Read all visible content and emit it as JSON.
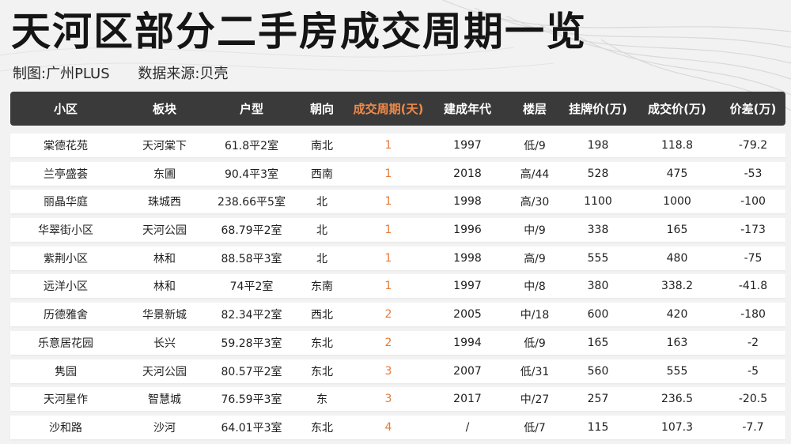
{
  "title": "天河区部分二手房成交周期一览",
  "credits": {
    "made_by": "制图:广州PLUS",
    "source": "数据来源:贝壳"
  },
  "colors": {
    "header_bg": "#3a3a3a",
    "highlight": "#f08a4b",
    "cycle_text": "#e47a3a",
    "row_bg": "#ffffff"
  },
  "table": {
    "headers": [
      "小区",
      "板块",
      "户型",
      "朝向",
      "成交周期(天)",
      "建成年代",
      "楼层",
      "挂牌价(万)",
      "成交价(万)",
      "价差(万)"
    ],
    "rows": [
      [
        "棠德花苑",
        "天河棠下",
        "61.8平2室",
        "南北",
        "1",
        "1997",
        "低/9",
        "198",
        "118.8",
        "-79.2"
      ],
      [
        "兰亭盛荟",
        "东圃",
        "90.4平3室",
        "西南",
        "1",
        "2018",
        "高/44",
        "528",
        "475",
        "-53"
      ],
      [
        "丽晶华庭",
        "珠城西",
        "238.66平5室",
        "北",
        "1",
        "1998",
        "高/30",
        "1100",
        "1000",
        "-100"
      ],
      [
        "华翠街小区",
        "天河公园",
        "68.79平2室",
        "北",
        "1",
        "1996",
        "中/9",
        "338",
        "165",
        "-173"
      ],
      [
        "紫荆小区",
        "林和",
        "88.58平3室",
        "北",
        "1",
        "1998",
        "高/9",
        "555",
        "480",
        "-75"
      ],
      [
        "远洋小区",
        "林和",
        "74平2室",
        "东南",
        "1",
        "1997",
        "中/8",
        "380",
        "338.2",
        "-41.8"
      ],
      [
        "历德雅舍",
        "华景新城",
        "82.34平2室",
        "西北",
        "2",
        "2005",
        "中/18",
        "600",
        "420",
        "-180"
      ],
      [
        "乐意居花园",
        "长兴",
        "59.28平3室",
        "东北",
        "2",
        "1994",
        "低/9",
        "165",
        "163",
        "-2"
      ],
      [
        "隽园",
        "天河公园",
        "80.57平2室",
        "东北",
        "3",
        "2007",
        "低/31",
        "560",
        "555",
        "-5"
      ],
      [
        "天河星作",
        "智慧城",
        "76.59平3室",
        "东",
        "3",
        "2017",
        "中/27",
        "257",
        "236.5",
        "-20.5"
      ],
      [
        "沙和路",
        "沙河",
        "64.01平3室",
        "东北",
        "4",
        "/",
        "低/7",
        "115",
        "107.3",
        "-7.7"
      ]
    ]
  }
}
